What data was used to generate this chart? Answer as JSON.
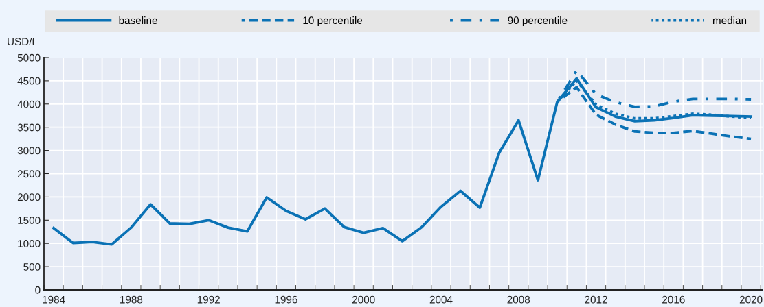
{
  "chart_data": {
    "type": "line",
    "ylabel": "USD/t",
    "x": [
      1984,
      1985,
      1986,
      1987,
      1988,
      1989,
      1990,
      1991,
      1992,
      1993,
      1994,
      1995,
      1996,
      1997,
      1998,
      1999,
      2000,
      2001,
      2002,
      2003,
      2004,
      2005,
      2006,
      2007,
      2008,
      2009,
      2010,
      2011,
      2012,
      2013,
      2014,
      2015,
      2016,
      2017,
      2018,
      2019,
      2020
    ],
    "series": [
      {
        "name": "baseline",
        "color": "#0b72b5",
        "line_style": "solid",
        "values": [
          1330,
          1010,
          1030,
          980,
          1340,
          1840,
          1430,
          1420,
          1500,
          1340,
          1260,
          1990,
          1700,
          1520,
          1750,
          1350,
          1230,
          1330,
          1050,
          1350,
          1790,
          2130,
          1770,
          2950,
          3650,
          2360,
          4050,
          4550,
          3930,
          3730,
          3630,
          3650,
          3700,
          3760,
          3750,
          3740,
          3730
        ]
      },
      {
        "name": "10 percentile",
        "color": "#0b72b5",
        "line_style": "dashed",
        "x": [
          2010,
          2011,
          2012,
          2013,
          2014,
          2015,
          2016,
          2017,
          2018,
          2019,
          2020
        ],
        "values": [
          4050,
          4360,
          3770,
          3560,
          3410,
          3380,
          3380,
          3420,
          3360,
          3300,
          3250
        ]
      },
      {
        "name": "90 percentile",
        "color": "#0b72b5",
        "line_style": "dashdot",
        "x": [
          2010,
          2011,
          2012,
          2013,
          2014,
          2015,
          2016,
          2017,
          2018,
          2019,
          2020
        ],
        "values": [
          4050,
          4720,
          4210,
          4040,
          3940,
          3950,
          4050,
          4110,
          4110,
          4110,
          4100
        ]
      },
      {
        "name": "median",
        "color": "#0b72b5",
        "line_style": "dotted",
        "x": [
          2010,
          2011,
          2012,
          2013,
          2014,
          2015,
          2016,
          2017,
          2018,
          2019,
          2020
        ],
        "values": [
          4050,
          4500,
          3990,
          3790,
          3690,
          3690,
          3740,
          3790,
          3770,
          3730,
          3700
        ]
      }
    ],
    "xlim": [
      1983.5,
      2020.6
    ],
    "xticks": [
      1984,
      1988,
      1992,
      1996,
      2000,
      2004,
      2008,
      2012,
      2016,
      2020
    ],
    "ylim": [
      0,
      5000
    ],
    "yticks": [
      0,
      500,
      1000,
      1500,
      2000,
      2500,
      3000,
      3500,
      4000,
      4500,
      5000
    ],
    "grid": true,
    "legend": "top",
    "marker": "none"
  }
}
